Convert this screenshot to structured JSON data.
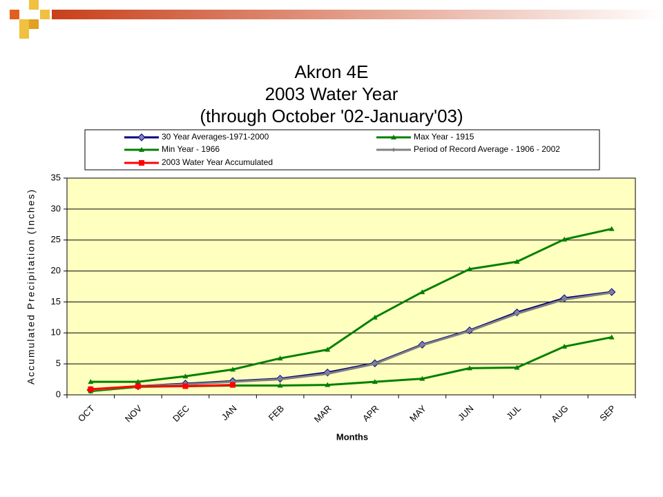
{
  "chart_data": {
    "type": "line",
    "title": [
      "Akron 4E",
      "2003 Water Year",
      "(through October '02-January'03)"
    ],
    "x_label": "Months",
    "y_label": "Accumulated Precipitation (Inches)",
    "categories": [
      "OCT",
      "NOV",
      "DEC",
      "JAN",
      "FEB",
      "MAR",
      "APR",
      "MAY",
      "JUN",
      "JUL",
      "AUG",
      "SEP"
    ],
    "series": [
      {
        "name": "30 Year Averages-1971-2000",
        "color": "#000080",
        "marker": "diamond",
        "values": [
          0.8,
          1.4,
          1.8,
          2.2,
          2.6,
          3.6,
          5.1,
          8.1,
          10.4,
          13.3,
          15.6,
          16.6
        ]
      },
      {
        "name": "Max Year - 1915",
        "color": "#008000",
        "marker": "triangle",
        "values": [
          2.1,
          2.1,
          3.0,
          4.1,
          5.9,
          7.3,
          12.5,
          16.6,
          20.3,
          21.5,
          25.1,
          26.8
        ]
      },
      {
        "name": "Min Year - 1966",
        "color": "#008000",
        "marker": "triangle",
        "values": [
          0.6,
          1.3,
          1.4,
          1.5,
          1.5,
          1.6,
          2.1,
          2.6,
          4.3,
          4.4,
          7.8,
          9.3
        ]
      },
      {
        "name": "Period of Record Average - 1906 - 2002",
        "color": "#808080",
        "marker": "small-diamond",
        "values": [
          0.8,
          1.4,
          1.7,
          2.1,
          2.5,
          3.4,
          5.0,
          8.0,
          10.3,
          13.1,
          15.4,
          16.5
        ]
      },
      {
        "name": "2003 Water Year Accumulated",
        "color": "#ff0000",
        "marker": "square",
        "values": [
          0.9,
          1.4,
          1.4,
          1.6,
          null,
          null,
          null,
          null,
          null,
          null,
          null,
          null
        ]
      }
    ],
    "ylim": [
      0,
      35
    ],
    "yticks": [
      0,
      5,
      10,
      15,
      20,
      25,
      30,
      35
    ],
    "plot_background": "#ffffc0"
  }
}
